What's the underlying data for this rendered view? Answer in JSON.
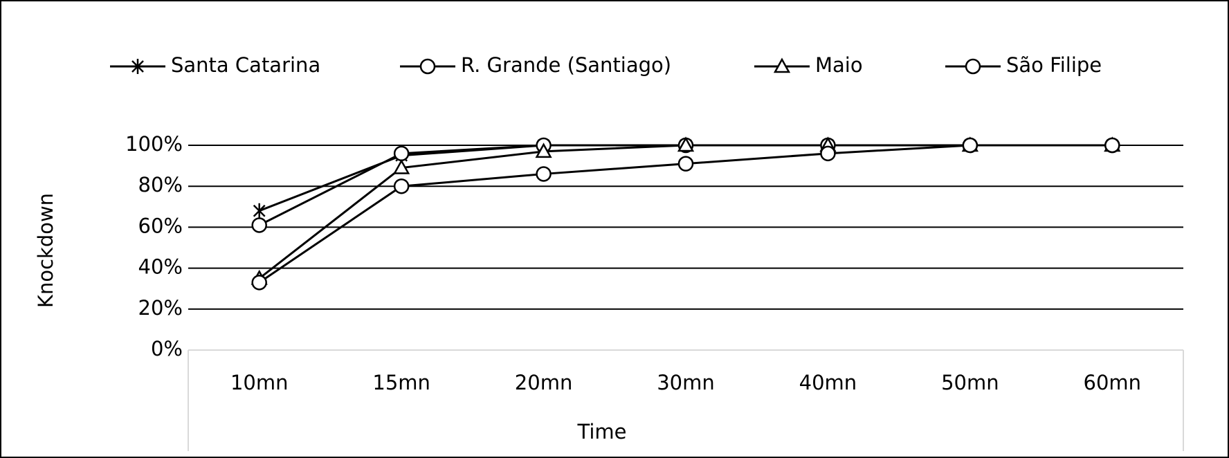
{
  "chart_data": {
    "type": "line",
    "x_label": "Time",
    "y_label": "Knockdown",
    "categories": [
      "10mn",
      "15mn",
      "20mn",
      "30mn",
      "40mn",
      "50mn",
      "60mn"
    ],
    "series": [
      {
        "name": "Santa Catarina",
        "color": "#000000",
        "marker": "star",
        "values": [
          68,
          95,
          100,
          100,
          100,
          100,
          100
        ]
      },
      {
        "name": "R. Grande (Santiago)",
        "color": "#000000",
        "marker": "circle",
        "values": [
          61,
          96,
          100,
          100,
          100,
          100,
          100
        ]
      },
      {
        "name": "Maio",
        "color": "#000000",
        "marker": "triangle",
        "values": [
          35,
          89,
          97,
          100,
          100,
          100,
          100
        ]
      },
      {
        "name": "São Filipe",
        "color": "#000000",
        "marker": "circle",
        "values": [
          33,
          80,
          86,
          91,
          96,
          100,
          100
        ]
      }
    ],
    "ylim": [
      0,
      100
    ],
    "yticks": [
      {
        "value": 0,
        "label": "0%"
      },
      {
        "value": 20,
        "label": "20%"
      },
      {
        "value": 40,
        "label": "40%"
      },
      {
        "value": 60,
        "label": "60%"
      },
      {
        "value": 80,
        "label": "80%"
      },
      {
        "value": 100,
        "label": "100%"
      }
    ],
    "grid": true,
    "legend": "top"
  }
}
